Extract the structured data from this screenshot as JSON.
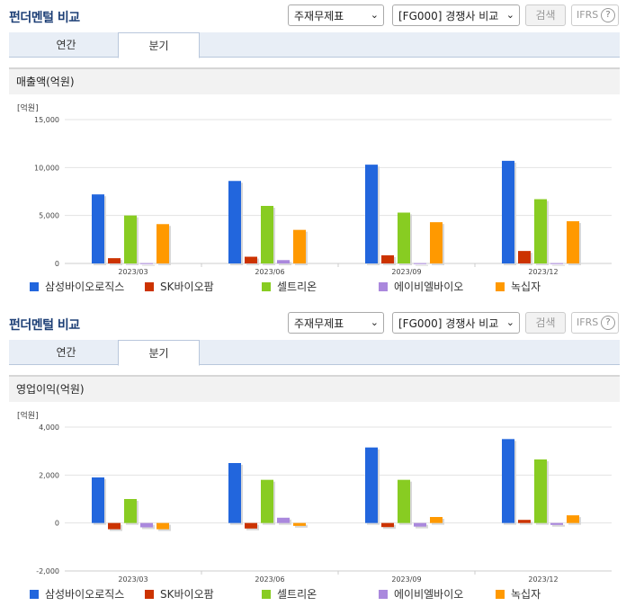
{
  "colors": {
    "samsung": "#2266dd",
    "sk": "#cc3300",
    "celltrion": "#88cc22",
    "abl": "#aa88dd",
    "gc": "#ff9900",
    "grid": "#e3e3e3"
  },
  "panels": [
    {
      "title": "펀더멘털 비교",
      "select1": "주재무제표",
      "select2": "[FG000] 경쟁사 비교",
      "search_label": "검색",
      "ifrs_label": "IFRS",
      "help_icon": "?",
      "tabs": [
        "연간",
        "분기"
      ],
      "active_tab": "분기",
      "subtitle": "매출액(억원)",
      "unit": "[억원]"
    },
    {
      "title": "펀더멘털 비교",
      "select1": "주재무제표",
      "select2": "[FG000] 경쟁사 비교",
      "search_label": "검색",
      "ifrs_label": "IFRS",
      "help_icon": "?",
      "tabs": [
        "연간",
        "분기"
      ],
      "active_tab": "분기",
      "subtitle": "영업이익(억원)",
      "unit": "[억원]"
    }
  ],
  "chart_data": [
    {
      "type": "bar",
      "title": "매출액(억원)",
      "categories": [
        "2023/03",
        "2023/06",
        "2023/09",
        "2023/12"
      ],
      "ylim": [
        0,
        15000
      ],
      "yticks": [
        "0",
        "5,000",
        "10,000",
        "15,000"
      ],
      "series": [
        {
          "name": "삼성바이오로직스",
          "values": [
            7200,
            8600,
            10300,
            10700
          ]
        },
        {
          "name": "SK바이오팜",
          "values": [
            550,
            700,
            850,
            1300
          ]
        },
        {
          "name": "셀트리온",
          "values": [
            5000,
            6000,
            5300,
            6700
          ]
        },
        {
          "name": "에이비엘바이오",
          "values": [
            30,
            350,
            30,
            30
          ]
        },
        {
          "name": "녹십자",
          "values": [
            4100,
            3500,
            4300,
            4400
          ]
        }
      ],
      "grid": true,
      "legend": "bottom"
    },
    {
      "type": "bar",
      "title": "영업이익(억원)",
      "categories": [
        "2023/03",
        "2023/06",
        "2023/09",
        "2023/12"
      ],
      "ylim": [
        -2000,
        4000
      ],
      "yticks": [
        "-2,000",
        "0",
        "2,000",
        "4,000"
      ],
      "series": [
        {
          "name": "삼성바이오로직스",
          "values": [
            1900,
            2500,
            3150,
            3500
          ]
        },
        {
          "name": "SK바이오팜",
          "values": [
            -260,
            -230,
            -170,
            130
          ]
        },
        {
          "name": "셀트리온",
          "values": [
            1000,
            1800,
            1800,
            2650
          ]
        },
        {
          "name": "에이비엘바이오",
          "values": [
            -180,
            220,
            -150,
            -80
          ]
        },
        {
          "name": "녹십자",
          "values": [
            -260,
            -120,
            250,
            320
          ]
        }
      ],
      "grid": true,
      "legend": "bottom"
    }
  ]
}
